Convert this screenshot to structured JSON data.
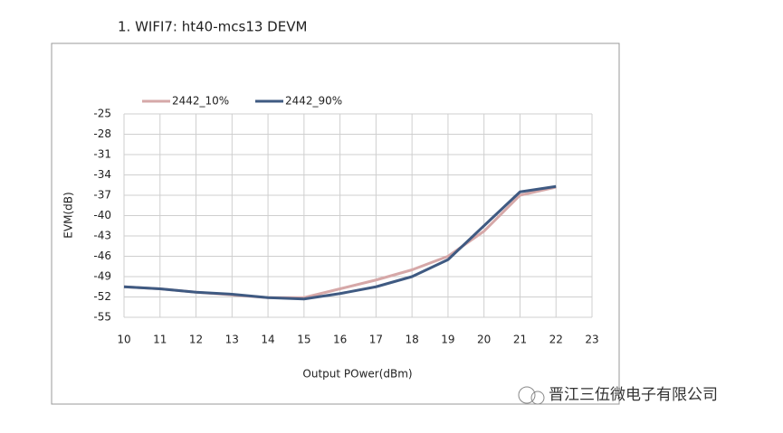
{
  "heading": "1.  WIFI7:  ht40-mcs13  DEVM",
  "watermark": "晋江三伍微电子有限公司",
  "chart_data": {
    "type": "line",
    "x_label": "Output  POwer(dBm)",
    "y_label": "EVM(dB)",
    "x": [
      10,
      11,
      12,
      13,
      14,
      15,
      16,
      17,
      18,
      19,
      20,
      21,
      22
    ],
    "series": [
      {
        "name": "2442_10%",
        "color": "#d6a8a8",
        "values": [
          -50.5,
          -50.8,
          -51.3,
          -51.7,
          -52.1,
          -52.1,
          -50.8,
          -49.5,
          -48.0,
          -46.0,
          -42.3,
          -37.0,
          -35.8
        ]
      },
      {
        "name": "2442_90%",
        "color": "#3f5a82",
        "values": [
          -50.5,
          -50.8,
          -51.3,
          -51.6,
          -52.1,
          -52.3,
          -51.5,
          -50.5,
          -49.0,
          -46.5,
          -41.5,
          -36.5,
          -35.7
        ]
      }
    ],
    "xlim": [
      10,
      23
    ],
    "xticks": [
      10,
      11,
      12,
      13,
      14,
      15,
      16,
      17,
      18,
      19,
      20,
      21,
      22,
      23
    ],
    "ylim": [
      -55,
      -25
    ],
    "yticks": [
      -25,
      -28,
      -31,
      -34,
      -37,
      -40,
      -43,
      -46,
      -49,
      -52,
      -55
    ],
    "grid": true,
    "legend": "top"
  }
}
